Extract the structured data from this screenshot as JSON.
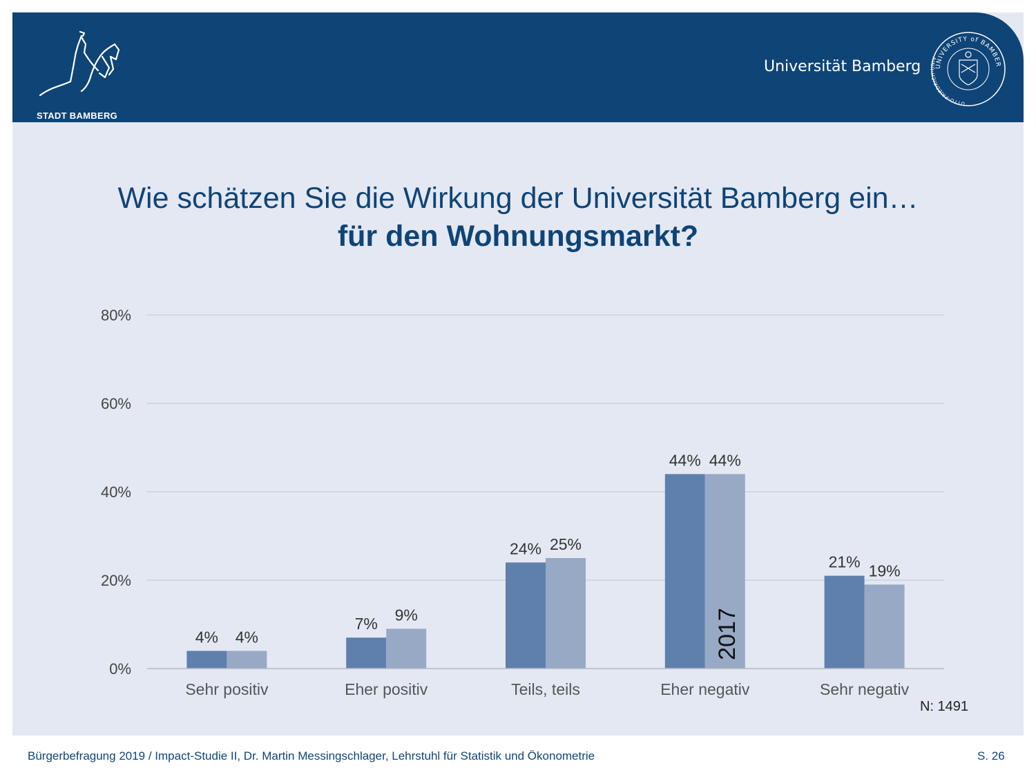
{
  "header": {
    "city_logo_text": "STADT BAMBERG",
    "university_name": "Universität Bamberg",
    "seal_text_top": "UNIVERSITY of BAMBERG",
    "seal_text_left": "OTTO-FRIEDRICH-UNIVERSITÄT",
    "brand_color": "#0f4477"
  },
  "title": {
    "line1": "Wie schätzen Sie die Wirkung der Universität Bamberg ein…",
    "line2": "für den Wohnungsmarkt?"
  },
  "chart_data": {
    "type": "bar",
    "categories": [
      "Sehr positiv",
      "Eher positiv",
      "Teils, teils",
      "Eher negativ",
      "Sehr negativ"
    ],
    "series": [
      {
        "values": [
          4,
          7,
          24,
          44,
          21
        ],
        "labels": [
          "4%",
          "7%",
          "24%",
          "44%",
          "21%"
        ],
        "color": "#5f80ad"
      },
      {
        "values": [
          4,
          9,
          25,
          44,
          19
        ],
        "labels": [
          "4%",
          "9%",
          "25%",
          "44%",
          "19%"
        ],
        "color": "#98a9c5"
      }
    ],
    "ylim": [
      0,
      80
    ],
    "yticks": [
      0,
      20,
      40,
      60,
      80
    ],
    "ytick_labels": [
      "0%",
      "20%",
      "40%",
      "60%",
      "80%"
    ],
    "grid": true,
    "bar_annotation": "2017",
    "sample_size": "N: 1491"
  },
  "footer": {
    "text": "Bürgerbefragung 2019 / Impact-Studie II, Dr. Martin Messingschlager, Lehrstuhl für Statistik und Ökonometrie",
    "page": "S. 26"
  }
}
